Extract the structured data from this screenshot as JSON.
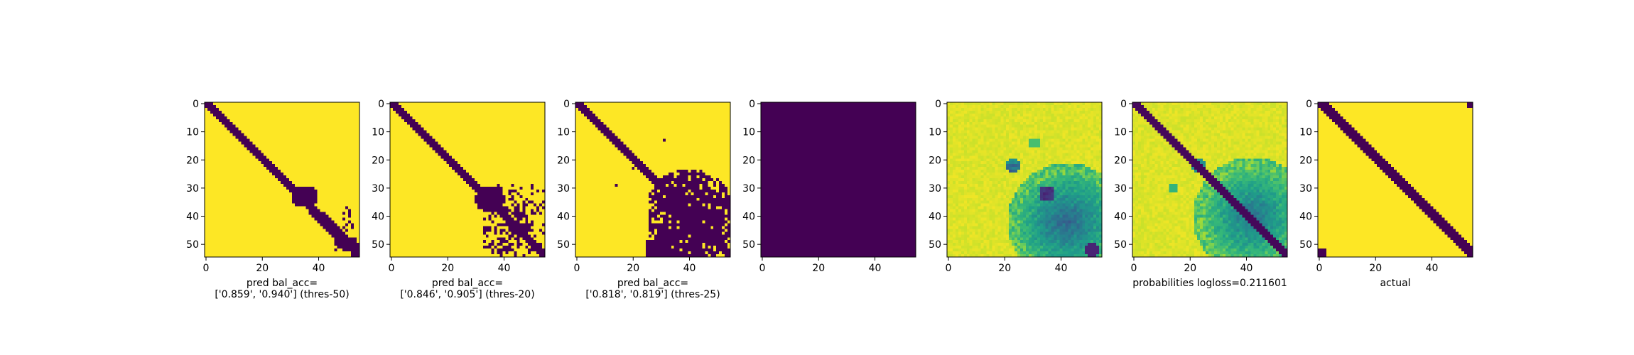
{
  "colors": {
    "viridis_low": "#440154",
    "viridis_high": "#fde725",
    "axis": "#000000",
    "background": "#ffffff"
  },
  "chart_data": [
    {
      "type": "heatmap",
      "description_ref": "binary prediction, threshold 50",
      "xlabel_lines": [
        "pred bal_acc=",
        "['0.859', '0.940'] (thres-50)"
      ],
      "xlim": [
        0,
        55
      ],
      "ylim": [
        55,
        0
      ],
      "xticks": [
        0,
        20,
        40
      ],
      "yticks": [
        0,
        10,
        20,
        30,
        40,
        50
      ],
      "grid_size": 55
    },
    {
      "type": "heatmap",
      "description_ref": "binary prediction, threshold 20",
      "xlabel_lines": [
        "pred bal_acc=",
        "['0.846', '0.905'] (thres-20)"
      ],
      "xlim": [
        0,
        55
      ],
      "ylim": [
        55,
        0
      ],
      "xticks": [
        0,
        20,
        40
      ],
      "yticks": [
        0,
        10,
        20,
        30,
        40,
        50
      ],
      "grid_size": 55
    },
    {
      "type": "heatmap",
      "description_ref": "binary prediction, threshold 25",
      "xlabel_lines": [
        "pred bal_acc=",
        "['0.818', '0.819'] (thres-25)"
      ],
      "xlim": [
        0,
        55
      ],
      "ylim": [
        55,
        0
      ],
      "xticks": [
        0,
        20,
        40
      ],
      "yticks": [
        0,
        10,
        20,
        30,
        40,
        50
      ],
      "grid_size": 55
    },
    {
      "type": "heatmap",
      "description_ref": "uniform low values",
      "xlabel_lines": [],
      "xlim": [
        0,
        55
      ],
      "ylim": [
        55,
        0
      ],
      "xticks": [
        0,
        20,
        40
      ],
      "yticks": [
        0,
        10,
        20,
        30,
        40,
        50
      ],
      "grid_size": 55
    },
    {
      "type": "heatmap",
      "description_ref": "probability map",
      "xlabel_lines": [],
      "xlim": [
        0,
        55
      ],
      "ylim": [
        55,
        0
      ],
      "xticks": [
        0,
        20,
        40
      ],
      "yticks": [
        0,
        10,
        20,
        30,
        40,
        50
      ],
      "grid_size": 55
    },
    {
      "type": "heatmap",
      "description_ref": "probability map with diagonal",
      "xlabel_lines": [
        "probabilities logloss=0.211601"
      ],
      "xlim": [
        0,
        55
      ],
      "ylim": [
        55,
        0
      ],
      "xticks": [
        0,
        20,
        40
      ],
      "yticks": [
        0,
        10,
        20,
        30,
        40,
        50
      ],
      "grid_size": 55
    },
    {
      "type": "heatmap",
      "description_ref": "ground truth",
      "xlabel_lines": [
        "actual"
      ],
      "xlim": [
        0,
        55
      ],
      "ylim": [
        55,
        0
      ],
      "xticks": [
        0,
        20,
        40
      ],
      "yticks": [
        0,
        10,
        20,
        30,
        40,
        50
      ],
      "grid_size": 55
    }
  ]
}
